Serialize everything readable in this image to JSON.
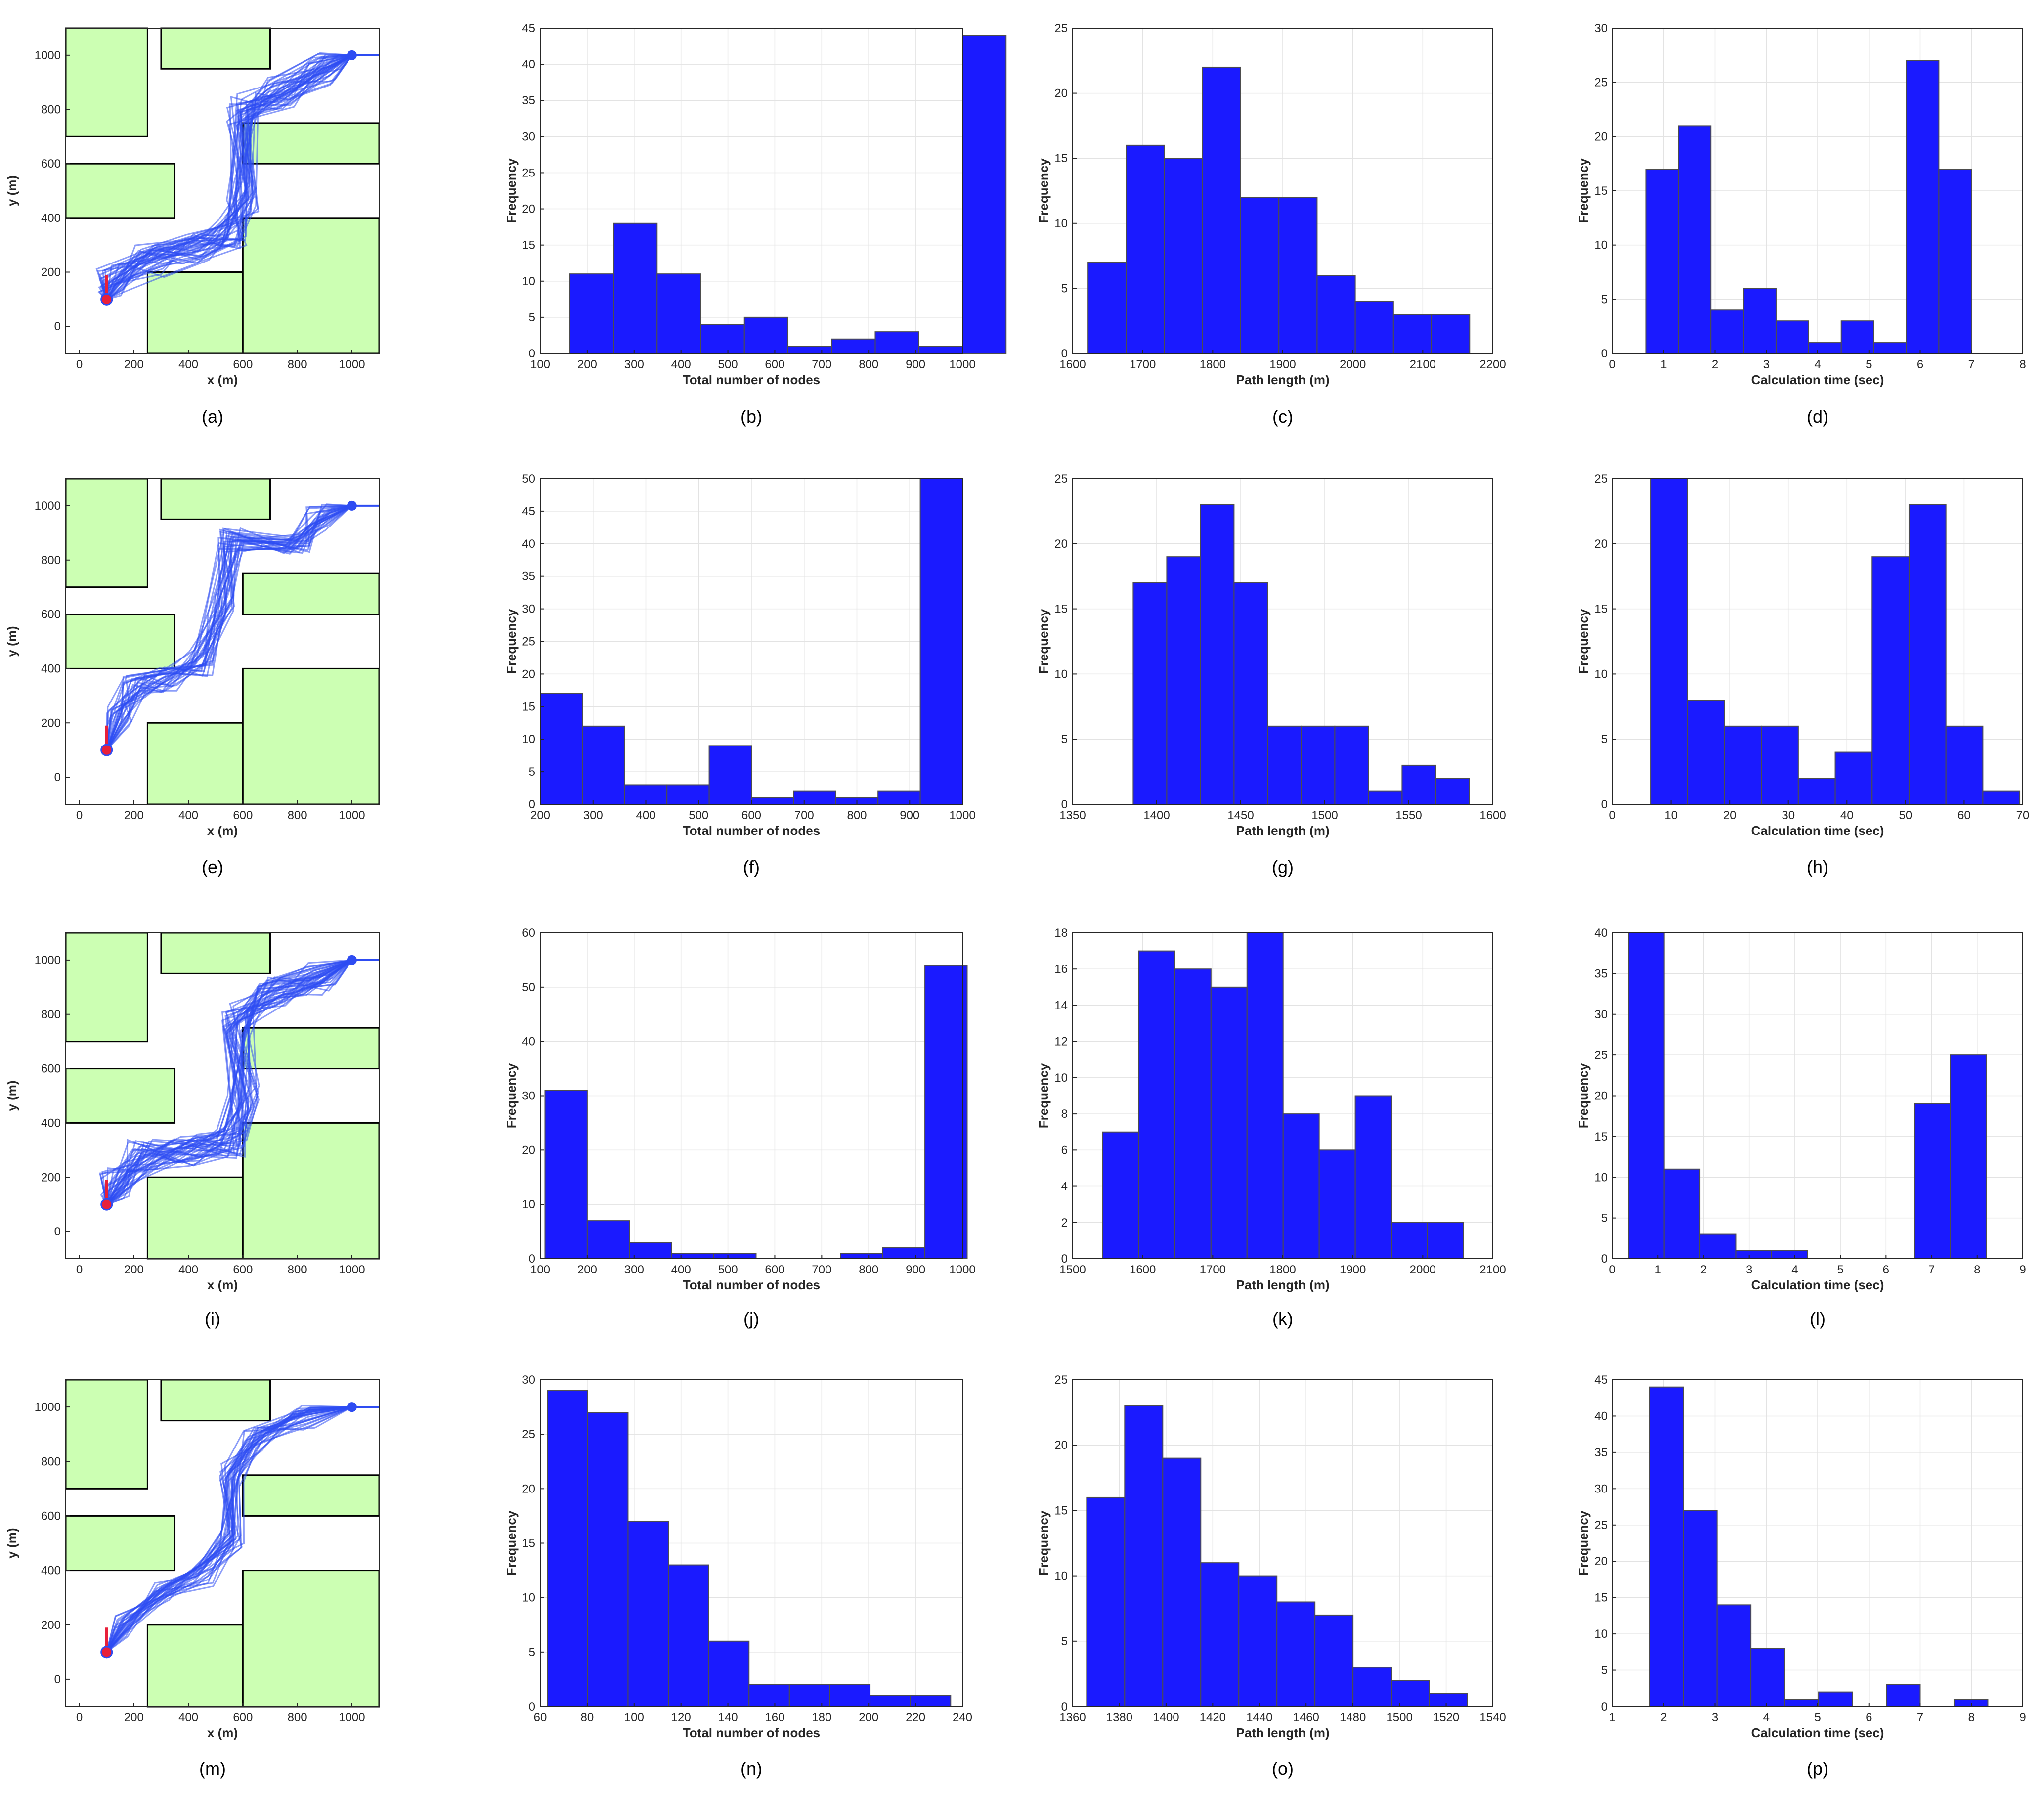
{
  "colors": {
    "bar": "#1a1aff",
    "bar_edge": "#4d4d4d",
    "obstacle": "#ccffb3",
    "path": "#2e4cf2",
    "start": "#e8203a",
    "goal": "#2e4cf2",
    "grid": "#e3e3e3"
  },
  "chart_data": [
    {
      "id": "a",
      "type": "scatter",
      "caption": "(a)",
      "variant": 0,
      "xlabel": "x (m)",
      "ylabel": "y (m)",
      "xticks": [
        0,
        200,
        400,
        600,
        800,
        1000
      ],
      "yticks": [
        0,
        200,
        400,
        600,
        800,
        1000
      ],
      "xlim": [
        -50,
        1100
      ],
      "ylim": [
        -100,
        1100
      ],
      "obstacles": [
        [
          -50,
          700,
          250,
          1100
        ],
        [
          300,
          950,
          700,
          1100
        ],
        [
          600,
          600,
          1100,
          750
        ],
        [
          -50,
          400,
          350,
          600
        ],
        [
          250,
          -100,
          600,
          200
        ],
        [
          600,
          -100,
          1100,
          400
        ]
      ],
      "start": [
        100,
        100
      ],
      "goal": [
        1000,
        1000
      ]
    },
    {
      "id": "b",
      "type": "bar",
      "caption": "(b)",
      "xlabel": "Total number of nodes",
      "ylabel": "Frequency",
      "xlim": [
        100,
        1000
      ],
      "xticks": [
        100,
        200,
        300,
        400,
        500,
        600,
        700,
        800,
        900,
        1000
      ],
      "ylim": [
        0,
        45
      ],
      "yticks": [
        0,
        5,
        10,
        15,
        20,
        25,
        30,
        35,
        40,
        45
      ],
      "bin_start": 163,
      "bin_width": 93,
      "values": [
        11,
        18,
        11,
        4,
        5,
        1,
        2,
        3,
        1,
        44
      ]
    },
    {
      "id": "c",
      "type": "bar",
      "caption": "(c)",
      "xlabel": "Path length (m)",
      "ylabel": "Frequency",
      "xlim": [
        1600,
        2200
      ],
      "xticks": [
        1600,
        1700,
        1800,
        1900,
        2000,
        2100,
        2200
      ],
      "ylim": [
        0,
        25
      ],
      "yticks": [
        0,
        5,
        10,
        15,
        20,
        25
      ],
      "bin_start": 1622,
      "bin_width": 54.5,
      "values": [
        7,
        16,
        15,
        22,
        12,
        12,
        6,
        4,
        3,
        3
      ]
    },
    {
      "id": "d",
      "type": "bar",
      "caption": "(d)",
      "xlabel": "Calculation time (sec)",
      "ylabel": "Frequency",
      "xlim": [
        0,
        8
      ],
      "xticks": [
        0,
        1,
        2,
        3,
        4,
        5,
        6,
        7,
        8
      ],
      "ylim": [
        0,
        30
      ],
      "yticks": [
        0,
        5,
        10,
        15,
        20,
        25,
        30
      ],
      "bin_start": 0.65,
      "bin_width": 0.635,
      "values": [
        17,
        21,
        4,
        6,
        3,
        1,
        3,
        1,
        27,
        17
      ]
    },
    {
      "id": "e",
      "type": "scatter",
      "caption": "(e)",
      "variant": 1,
      "xlabel": "x (m)",
      "ylabel": "y (m)",
      "xticks": [
        0,
        200,
        400,
        600,
        800,
        1000
      ],
      "yticks": [
        0,
        200,
        400,
        600,
        800,
        1000
      ],
      "xlim": [
        -50,
        1100
      ],
      "ylim": [
        -100,
        1100
      ],
      "obstacles": [
        [
          -50,
          700,
          250,
          1100
        ],
        [
          300,
          950,
          700,
          1100
        ],
        [
          600,
          600,
          1100,
          750
        ],
        [
          -50,
          400,
          350,
          600
        ],
        [
          250,
          -100,
          600,
          200
        ],
        [
          600,
          -100,
          1100,
          400
        ]
      ],
      "start": [
        100,
        100
      ],
      "goal": [
        1000,
        1000
      ]
    },
    {
      "id": "f",
      "type": "bar",
      "caption": "(f)",
      "xlabel": "Total number of nodes",
      "ylabel": "Frequency",
      "xlim": [
        200,
        1000
      ],
      "xticks": [
        200,
        300,
        400,
        500,
        600,
        700,
        800,
        900,
        1000
      ],
      "ylim": [
        0,
        50
      ],
      "yticks": [
        0,
        5,
        10,
        15,
        20,
        25,
        30,
        35,
        40,
        45,
        50
      ],
      "bin_start": 200,
      "bin_width": 80,
      "values": [
        17,
        12,
        3,
        3,
        9,
        1,
        2,
        1,
        2,
        50
      ]
    },
    {
      "id": "g",
      "type": "bar",
      "caption": "(g)",
      "xlabel": "Path length (m)",
      "ylabel": "Frequency",
      "xlim": [
        1350,
        1600
      ],
      "xticks": [
        1350,
        1400,
        1450,
        1500,
        1550,
        1600
      ],
      "ylim": [
        0,
        25
      ],
      "yticks": [
        0,
        5,
        10,
        15,
        20,
        25
      ],
      "bin_start": 1386,
      "bin_width": 20,
      "values": [
        17,
        19,
        23,
        17,
        6,
        6,
        6,
        1,
        3,
        2
      ]
    },
    {
      "id": "h",
      "type": "bar",
      "caption": "(h)",
      "xlabel": "Calculation time (sec)",
      "ylabel": "Frequency",
      "xlim": [
        0,
        70
      ],
      "xticks": [
        0,
        10,
        20,
        30,
        40,
        50,
        60,
        70
      ],
      "ylim": [
        0,
        25
      ],
      "yticks": [
        0,
        5,
        10,
        15,
        20,
        25
      ],
      "bin_start": 6.5,
      "bin_width": 6.3,
      "values": [
        25,
        8,
        6,
        6,
        2,
        4,
        19,
        23,
        6,
        1
      ]
    },
    {
      "id": "i",
      "type": "scatter",
      "caption": "(i)",
      "variant": 2,
      "xlabel": "x (m)",
      "ylabel": "y (m)",
      "xticks": [
        0,
        200,
        400,
        600,
        800,
        1000
      ],
      "yticks": [
        0,
        200,
        400,
        600,
        800,
        1000
      ],
      "xlim": [
        -50,
        1100
      ],
      "ylim": [
        -100,
        1100
      ],
      "obstacles": [
        [
          -50,
          700,
          250,
          1100
        ],
        [
          300,
          950,
          700,
          1100
        ],
        [
          600,
          600,
          1100,
          750
        ],
        [
          -50,
          400,
          350,
          600
        ],
        [
          250,
          -100,
          600,
          200
        ],
        [
          600,
          -100,
          1100,
          400
        ]
      ],
      "start": [
        100,
        100
      ],
      "goal": [
        1000,
        1000
      ]
    },
    {
      "id": "j",
      "type": "bar",
      "caption": "(j)",
      "xlabel": "Total number of nodes",
      "ylabel": "Frequency",
      "xlim": [
        100,
        1000
      ],
      "xticks": [
        100,
        200,
        300,
        400,
        500,
        600,
        700,
        800,
        900,
        1000
      ],
      "ylim": [
        0,
        60
      ],
      "yticks": [
        0,
        10,
        20,
        30,
        40,
        50,
        60
      ],
      "bin_start": 110,
      "bin_width": 90,
      "values": [
        31,
        7,
        3,
        1,
        1,
        0,
        0,
        1,
        2,
        54
      ]
    },
    {
      "id": "k",
      "type": "bar",
      "caption": "(k)",
      "xlabel": "Path length (m)",
      "ylabel": "Frequency",
      "xlim": [
        1500,
        2100
      ],
      "xticks": [
        1500,
        1600,
        1700,
        1800,
        1900,
        2000,
        2100
      ],
      "ylim": [
        0,
        18
      ],
      "yticks": [
        0,
        2,
        4,
        6,
        8,
        10,
        12,
        14,
        16,
        18
      ],
      "bin_start": 1543,
      "bin_width": 51.5,
      "values": [
        7,
        17,
        16,
        15,
        18,
        8,
        6,
        9,
        2,
        2
      ]
    },
    {
      "id": "l",
      "type": "bar",
      "caption": "(l)",
      "xlabel": "Calculation time (sec)",
      "ylabel": "Frequency",
      "xlim": [
        0,
        9
      ],
      "xticks": [
        0,
        1,
        2,
        3,
        4,
        5,
        6,
        7,
        8,
        9
      ],
      "ylim": [
        0,
        40
      ],
      "yticks": [
        0,
        5,
        10,
        15,
        20,
        25,
        30,
        35,
        40
      ],
      "bin_start": 0.35,
      "bin_width": 0.785,
      "values": [
        40,
        11,
        3,
        1,
        1,
        0,
        0,
        0,
        19,
        25
      ]
    },
    {
      "id": "m",
      "type": "scatter",
      "caption": "(m)",
      "variant": 3,
      "xlabel": "x (m)",
      "ylabel": "y (m)",
      "xticks": [
        0,
        200,
        400,
        600,
        800,
        1000
      ],
      "yticks": [
        0,
        200,
        400,
        600,
        800,
        1000
      ],
      "xlim": [
        -50,
        1100
      ],
      "ylim": [
        -100,
        1100
      ],
      "obstacles": [
        [
          -50,
          700,
          250,
          1100
        ],
        [
          300,
          950,
          700,
          1100
        ],
        [
          600,
          600,
          1100,
          750
        ],
        [
          -50,
          400,
          350,
          600
        ],
        [
          250,
          -100,
          600,
          200
        ],
        [
          600,
          -100,
          1100,
          400
        ]
      ],
      "start": [
        100,
        100
      ],
      "goal": [
        1000,
        1000
      ]
    },
    {
      "id": "n",
      "type": "bar",
      "caption": "(n)",
      "xlabel": "Total number of nodes",
      "ylabel": "Frequency",
      "xlim": [
        60,
        240
      ],
      "xticks": [
        60,
        80,
        100,
        120,
        140,
        160,
        180,
        200,
        220,
        240
      ],
      "ylim": [
        0,
        30
      ],
      "yticks": [
        0,
        5,
        10,
        15,
        20,
        25,
        30
      ],
      "bin_start": 63,
      "bin_width": 17.2,
      "values": [
        29,
        27,
        17,
        13,
        6,
        2,
        2,
        2,
        1,
        1
      ]
    },
    {
      "id": "o",
      "type": "bar",
      "caption": "(o)",
      "xlabel": "Path length (m)",
      "ylabel": "Frequency",
      "xlim": [
        1360,
        1540
      ],
      "xticks": [
        1360,
        1380,
        1400,
        1420,
        1440,
        1460,
        1480,
        1500,
        1520,
        1540
      ],
      "ylim": [
        0,
        25
      ],
      "yticks": [
        0,
        5,
        10,
        15,
        20,
        25
      ],
      "bin_start": 1366,
      "bin_width": 16.3,
      "values": [
        16,
        23,
        19,
        11,
        10,
        8,
        7,
        3,
        2,
        1
      ]
    },
    {
      "id": "p",
      "type": "bar",
      "caption": "(p)",
      "xlabel": "Calculation time (sec)",
      "ylabel": "Frequency",
      "xlim": [
        1,
        9
      ],
      "xticks": [
        1,
        2,
        3,
        4,
        5,
        6,
        7,
        8,
        9
      ],
      "ylim": [
        0,
        45
      ],
      "yticks": [
        0,
        5,
        10,
        15,
        20,
        25,
        30,
        35,
        40,
        45
      ],
      "bin_start": 1.72,
      "bin_width": 0.66,
      "values": [
        44,
        27,
        14,
        8,
        1,
        2,
        0,
        3,
        0,
        1
      ]
    }
  ]
}
